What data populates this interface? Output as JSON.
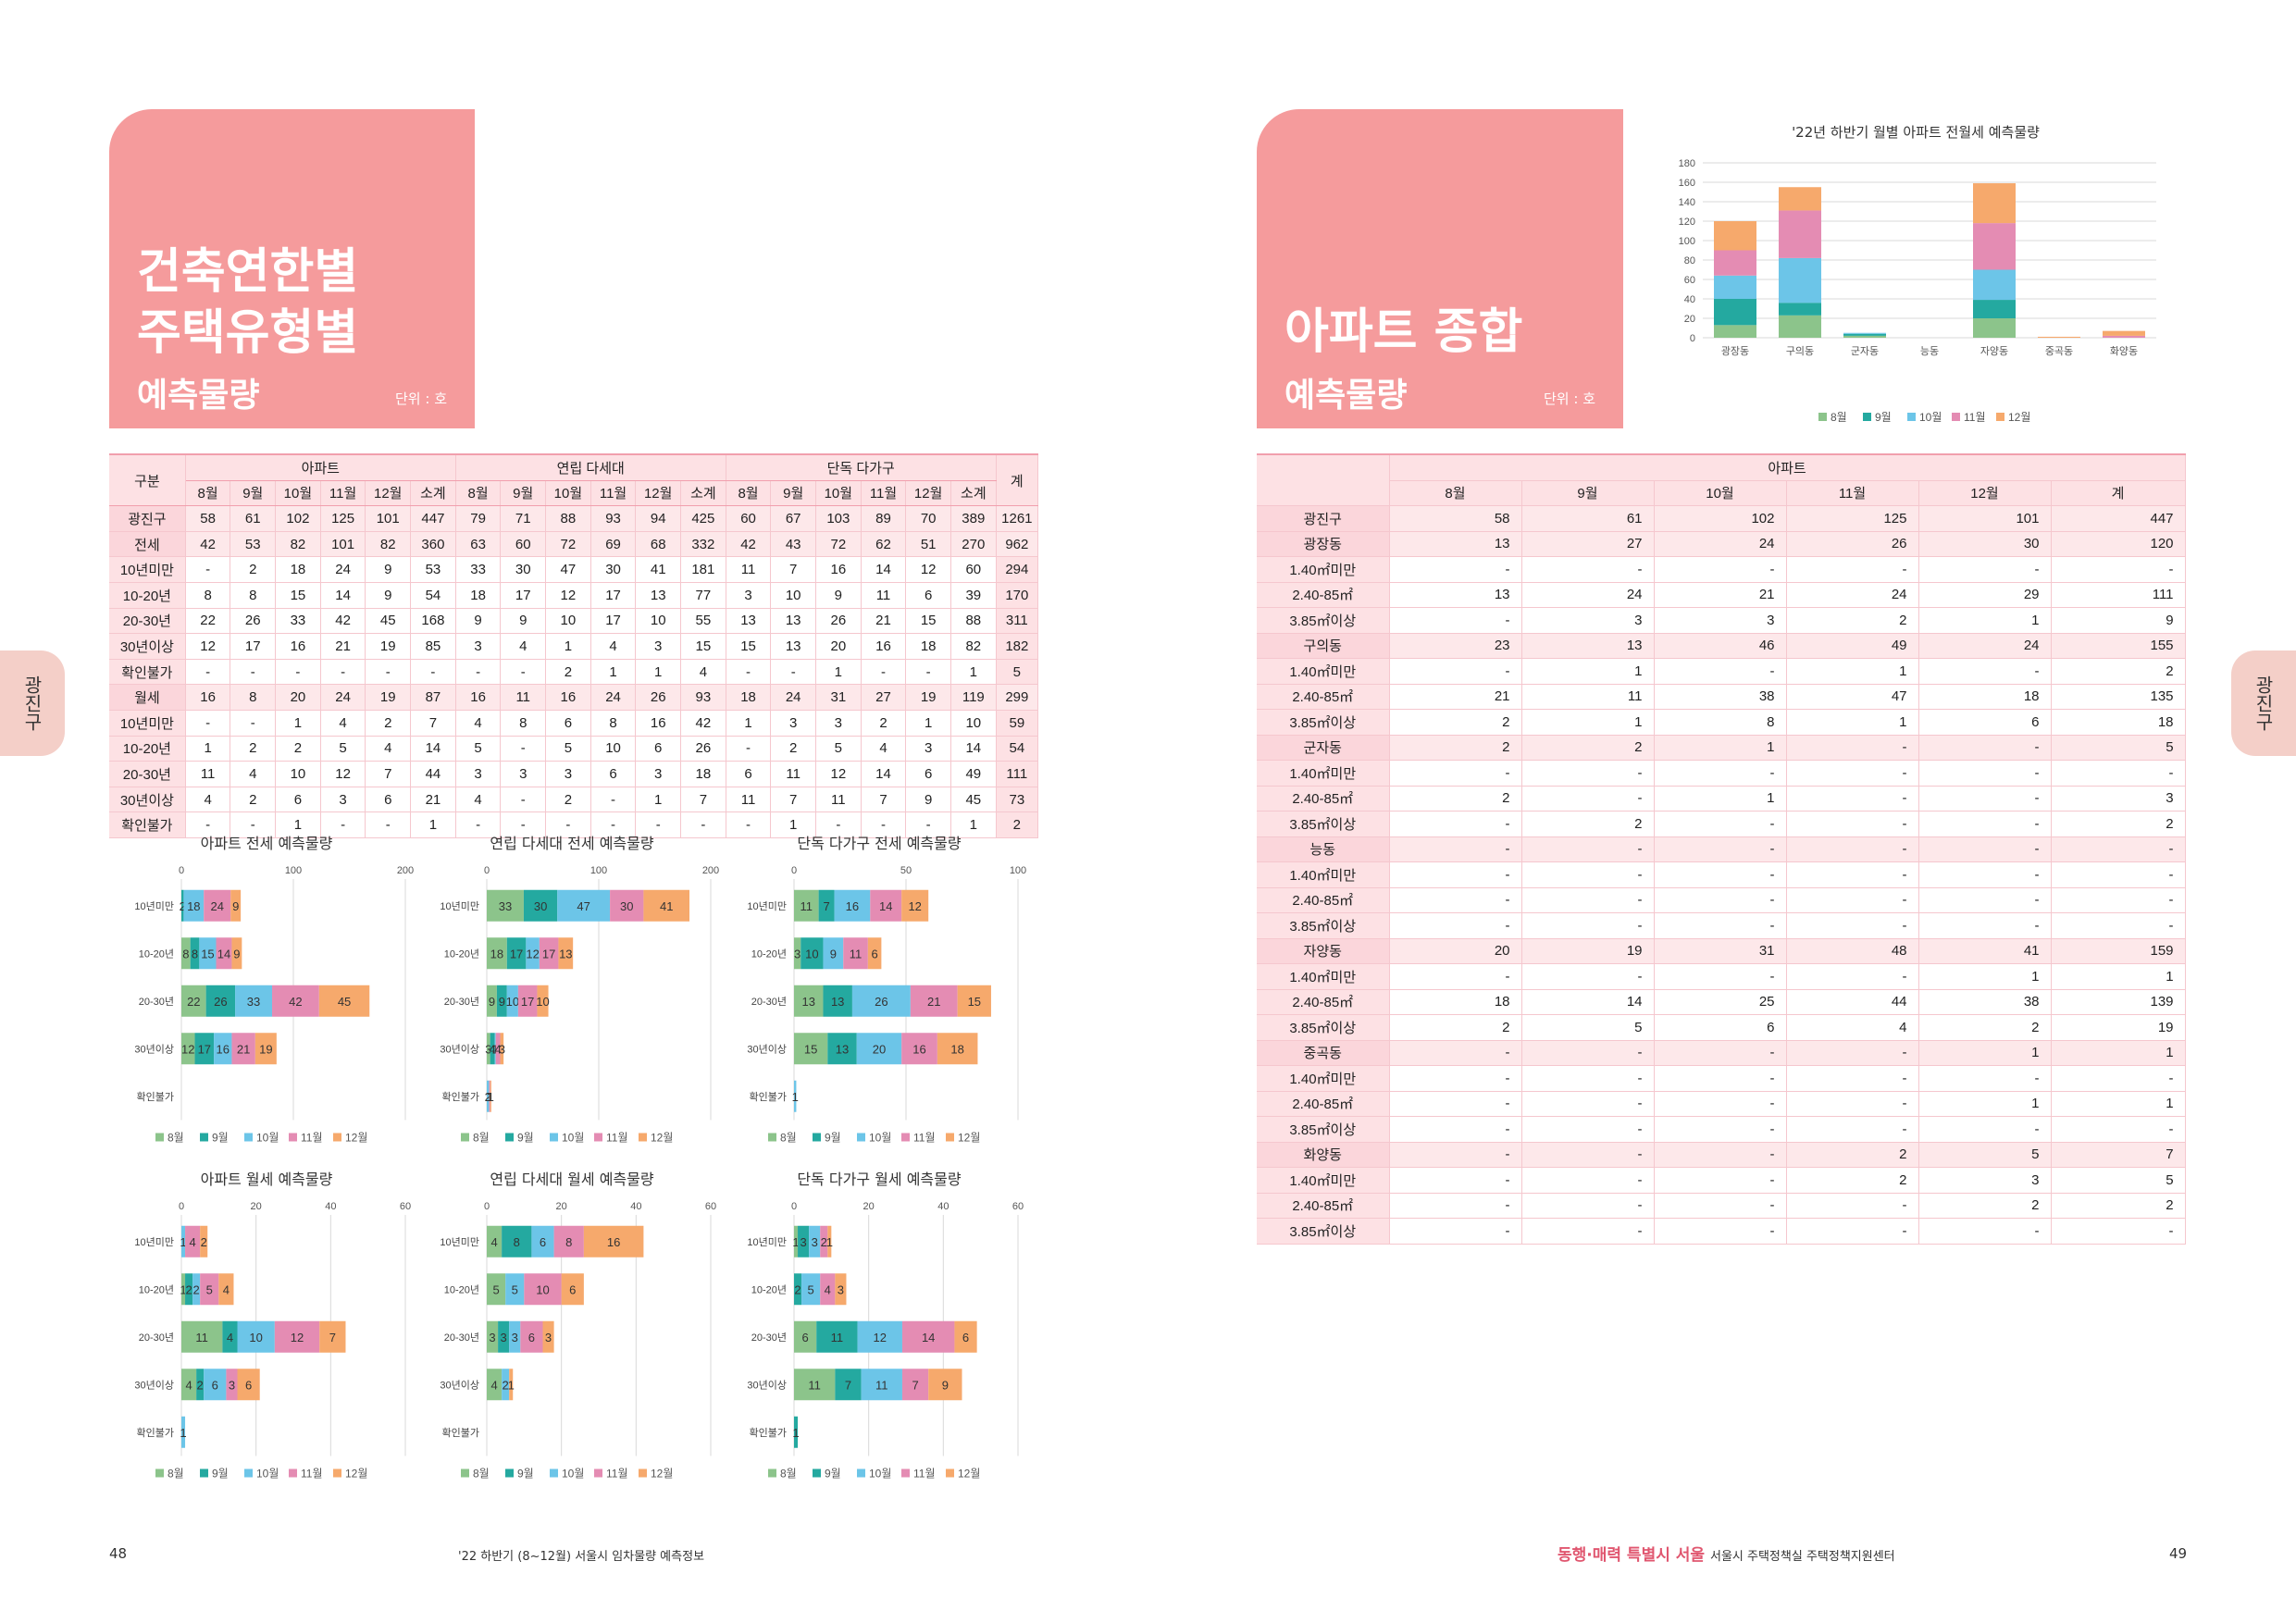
{
  "left": {
    "title_line1": "건축연한별",
    "title_line2": "주택유형별",
    "subtitle": "예측물량",
    "unit": "단위 : 호",
    "side_tab": "광진구",
    "page_number": "48",
    "footer": "'22 하반기 (8~12월) 서울시 임차물량 예측정보"
  },
  "right": {
    "title": "아파트 종합",
    "subtitle": "예측물량",
    "unit": "단위 : 호",
    "side_tab": "광진구",
    "page_number": "49",
    "footer_logo": "동행·매력 특별시 서울",
    "footer": "서울시 주택정책실 주택정책지원센터"
  },
  "left_table": {
    "corner": "구분",
    "groups": [
      "아파트",
      "연립 다세대",
      "단독 다가구"
    ],
    "total": "계",
    "months": [
      "8월",
      "9월",
      "10월",
      "11월",
      "12월",
      "소계"
    ],
    "rows": [
      {
        "label": "광진구",
        "sum": true,
        "vals": [
          "58",
          "61",
          "102",
          "125",
          "101",
          "447",
          "79",
          "71",
          "88",
          "93",
          "94",
          "425",
          "60",
          "67",
          "103",
          "89",
          "70",
          "389",
          "1261"
        ]
      },
      {
        "label": "전세",
        "sum": true,
        "vals": [
          "42",
          "53",
          "82",
          "101",
          "82",
          "360",
          "63",
          "60",
          "72",
          "69",
          "68",
          "332",
          "42",
          "43",
          "72",
          "62",
          "51",
          "270",
          "962"
        ]
      },
      {
        "label": "10년미만",
        "vals": [
          "-",
          "2",
          "18",
          "24",
          "9",
          "53",
          "33",
          "30",
          "47",
          "30",
          "41",
          "181",
          "11",
          "7",
          "16",
          "14",
          "12",
          "60",
          "294"
        ]
      },
      {
        "label": "10-20년",
        "vals": [
          "8",
          "8",
          "15",
          "14",
          "9",
          "54",
          "18",
          "17",
          "12",
          "17",
          "13",
          "77",
          "3",
          "10",
          "9",
          "11",
          "6",
          "39",
          "170"
        ]
      },
      {
        "label": "20-30년",
        "vals": [
          "22",
          "26",
          "33",
          "42",
          "45",
          "168",
          "9",
          "9",
          "10",
          "17",
          "10",
          "55",
          "13",
          "13",
          "26",
          "21",
          "15",
          "88",
          "311"
        ]
      },
      {
        "label": "30년이상",
        "vals": [
          "12",
          "17",
          "16",
          "21",
          "19",
          "85",
          "3",
          "4",
          "1",
          "4",
          "3",
          "15",
          "15",
          "13",
          "20",
          "16",
          "18",
          "82",
          "182"
        ]
      },
      {
        "label": "확인불가",
        "vals": [
          "-",
          "-",
          "-",
          "-",
          "-",
          "-",
          "-",
          "-",
          "2",
          "1",
          "1",
          "4",
          "-",
          "-",
          "1",
          "-",
          "-",
          "1",
          "5"
        ]
      },
      {
        "label": "월세",
        "sum": true,
        "vals": [
          "16",
          "8",
          "20",
          "24",
          "19",
          "87",
          "16",
          "11",
          "16",
          "24",
          "26",
          "93",
          "18",
          "24",
          "31",
          "27",
          "19",
          "119",
          "299"
        ]
      },
      {
        "label": "10년미만",
        "vals": [
          "-",
          "-",
          "1",
          "4",
          "2",
          "7",
          "4",
          "8",
          "6",
          "8",
          "16",
          "42",
          "1",
          "3",
          "3",
          "2",
          "1",
          "10",
          "59"
        ]
      },
      {
        "label": "10-20년",
        "vals": [
          "1",
          "2",
          "2",
          "5",
          "4",
          "14",
          "5",
          "-",
          "5",
          "10",
          "6",
          "26",
          "-",
          "2",
          "5",
          "4",
          "3",
          "14",
          "54"
        ]
      },
      {
        "label": "20-30년",
        "vals": [
          "11",
          "4",
          "10",
          "12",
          "7",
          "44",
          "3",
          "3",
          "3",
          "6",
          "3",
          "18",
          "6",
          "11",
          "12",
          "14",
          "6",
          "49",
          "111"
        ]
      },
      {
        "label": "30년이상",
        "vals": [
          "4",
          "2",
          "6",
          "3",
          "6",
          "21",
          "4",
          "-",
          "2",
          "-",
          "1",
          "7",
          "11",
          "7",
          "11",
          "7",
          "9",
          "45",
          "73"
        ]
      },
      {
        "label": "확인불가",
        "vals": [
          "-",
          "-",
          "1",
          "-",
          "-",
          "1",
          "-",
          "-",
          "-",
          "-",
          "-",
          "-",
          "-",
          "1",
          "-",
          "-",
          "-",
          "1",
          "2"
        ]
      }
    ]
  },
  "right_table": {
    "group": "아파트",
    "months": [
      "8월",
      "9월",
      "10월",
      "11월",
      "12월",
      "계"
    ],
    "rows": [
      {
        "label": "광진구",
        "sum": true,
        "vals": [
          "58",
          "61",
          "102",
          "125",
          "101",
          "447"
        ]
      },
      {
        "label": "광장동",
        "sum": true,
        "vals": [
          "13",
          "27",
          "24",
          "26",
          "30",
          "120"
        ]
      },
      {
        "label": "1.40㎡미만",
        "vals": [
          "-",
          "-",
          "-",
          "-",
          "-",
          "-"
        ]
      },
      {
        "label": "2.40-85㎡",
        "vals": [
          "13",
          "24",
          "21",
          "24",
          "29",
          "111"
        ]
      },
      {
        "label": "3.85㎡이상",
        "vals": [
          "-",
          "3",
          "3",
          "2",
          "1",
          "9"
        ]
      },
      {
        "label": "구의동",
        "sum": true,
        "vals": [
          "23",
          "13",
          "46",
          "49",
          "24",
          "155"
        ]
      },
      {
        "label": "1.40㎡미만",
        "vals": [
          "-",
          "1",
          "-",
          "1",
          "-",
          "2"
        ]
      },
      {
        "label": "2.40-85㎡",
        "vals": [
          "21",
          "11",
          "38",
          "47",
          "18",
          "135"
        ]
      },
      {
        "label": "3.85㎡이상",
        "vals": [
          "2",
          "1",
          "8",
          "1",
          "6",
          "18"
        ]
      },
      {
        "label": "군자동",
        "sum": true,
        "vals": [
          "2",
          "2",
          "1",
          "-",
          "-",
          "5"
        ]
      },
      {
        "label": "1.40㎡미만",
        "vals": [
          "-",
          "-",
          "-",
          "-",
          "-",
          "-"
        ]
      },
      {
        "label": "2.40-85㎡",
        "vals": [
          "2",
          "-",
          "1",
          "-",
          "-",
          "3"
        ]
      },
      {
        "label": "3.85㎡이상",
        "vals": [
          "-",
          "2",
          "-",
          "-",
          "-",
          "2"
        ]
      },
      {
        "label": "능동",
        "sum": true,
        "vals": [
          "-",
          "-",
          "-",
          "-",
          "-",
          "-"
        ]
      },
      {
        "label": "1.40㎡미만",
        "vals": [
          "-",
          "-",
          "-",
          "-",
          "-",
          "-"
        ]
      },
      {
        "label": "2.40-85㎡",
        "vals": [
          "-",
          "-",
          "-",
          "-",
          "-",
          "-"
        ]
      },
      {
        "label": "3.85㎡이상",
        "vals": [
          "-",
          "-",
          "-",
          "-",
          "-",
          "-"
        ]
      },
      {
        "label": "자양동",
        "sum": true,
        "vals": [
          "20",
          "19",
          "31",
          "48",
          "41",
          "159"
        ]
      },
      {
        "label": "1.40㎡미만",
        "vals": [
          "-",
          "-",
          "-",
          "-",
          "1",
          "1"
        ]
      },
      {
        "label": "2.40-85㎡",
        "vals": [
          "18",
          "14",
          "25",
          "44",
          "38",
          "139"
        ]
      },
      {
        "label": "3.85㎡이상",
        "vals": [
          "2",
          "5",
          "6",
          "4",
          "2",
          "19"
        ]
      },
      {
        "label": "중곡동",
        "sum": true,
        "vals": [
          "-",
          "-",
          "-",
          "-",
          "1",
          "1"
        ]
      },
      {
        "label": "1.40㎡미만",
        "vals": [
          "-",
          "-",
          "-",
          "-",
          "-",
          "-"
        ]
      },
      {
        "label": "2.40-85㎡",
        "vals": [
          "-",
          "-",
          "-",
          "-",
          "1",
          "1"
        ]
      },
      {
        "label": "3.85㎡이상",
        "vals": [
          "-",
          "-",
          "-",
          "-",
          "-",
          "-"
        ]
      },
      {
        "label": "화양동",
        "sum": true,
        "vals": [
          "-",
          "-",
          "-",
          "2",
          "5",
          "7"
        ]
      },
      {
        "label": "1.40㎡미만",
        "vals": [
          "-",
          "-",
          "-",
          "2",
          "3",
          "5"
        ]
      },
      {
        "label": "2.40-85㎡",
        "vals": [
          "-",
          "-",
          "-",
          "-",
          "2",
          "2"
        ]
      },
      {
        "label": "3.85㎡이상",
        "vals": [
          "-",
          "-",
          "-",
          "-",
          "-",
          "-"
        ]
      }
    ]
  },
  "series_colors": [
    "#8cc48b",
    "#24a9a0",
    "#6cc5e8",
    "#e48cb3",
    "#f6a96c"
  ],
  "legend": [
    "8월",
    "9월",
    "10월",
    "11월",
    "12월"
  ],
  "chart_data": [
    {
      "id": "top-right",
      "type": "bar",
      "stacked": true,
      "title": "'22년 하반기 월별 아파트 전월세 예측물량",
      "categories": [
        "광장동",
        "구의동",
        "군자동",
        "능동",
        "자양동",
        "중곡동",
        "화양동"
      ],
      "ylim": [
        0,
        180
      ],
      "yticks": [
        0,
        20,
        40,
        60,
        80,
        100,
        120,
        140,
        160,
        180
      ],
      "series": [
        {
          "name": "8월",
          "values": [
            13,
            23,
            2,
            0,
            20,
            0,
            0
          ]
        },
        {
          "name": "9월",
          "values": [
            27,
            13,
            2,
            0,
            19,
            0,
            0
          ]
        },
        {
          "name": "10월",
          "values": [
            24,
            46,
            1,
            0,
            31,
            0,
            0
          ]
        },
        {
          "name": "11월",
          "values": [
            26,
            49,
            0,
            0,
            48,
            0,
            2
          ]
        },
        {
          "name": "12월",
          "values": [
            30,
            24,
            0,
            0,
            41,
            1,
            5
          ]
        }
      ]
    },
    {
      "id": "apt-jeonse",
      "type": "bar",
      "orientation": "horizontal",
      "stacked": true,
      "title": "아파트 전세 예측물량",
      "xlim": [
        0,
        200
      ],
      "xticks": [
        0,
        100,
        200
      ],
      "categories": [
        "10년미만",
        "10-20년",
        "20-30년",
        "30년이상",
        "확인불가"
      ],
      "series": [
        {
          "name": "8월",
          "values": [
            0,
            8,
            22,
            12,
            0
          ]
        },
        {
          "name": "9월",
          "values": [
            2,
            8,
            26,
            17,
            0
          ]
        },
        {
          "name": "10월",
          "values": [
            18,
            15,
            33,
            16,
            0
          ]
        },
        {
          "name": "11월",
          "values": [
            24,
            14,
            42,
            21,
            0
          ]
        },
        {
          "name": "12월",
          "values": [
            9,
            9,
            45,
            19,
            0
          ]
        }
      ]
    },
    {
      "id": "yeonrip-jeonse",
      "type": "bar",
      "orientation": "horizontal",
      "stacked": true,
      "title": "연립 다세대 전세 예측물량",
      "xlim": [
        0,
        200
      ],
      "xticks": [
        0,
        100,
        200
      ],
      "categories": [
        "10년미만",
        "10-20년",
        "20-30년",
        "30년이상",
        "확인불가"
      ],
      "series": [
        {
          "name": "8월",
          "values": [
            33,
            18,
            9,
            3,
            0
          ]
        },
        {
          "name": "9월",
          "values": [
            30,
            17,
            9,
            4,
            0
          ]
        },
        {
          "name": "10월",
          "values": [
            47,
            12,
            10,
            1,
            2
          ]
        },
        {
          "name": "11월",
          "values": [
            30,
            17,
            17,
            4,
            1
          ]
        },
        {
          "name": "12월",
          "values": [
            41,
            13,
            10,
            3,
            1
          ]
        }
      ]
    },
    {
      "id": "dandok-jeonse",
      "type": "bar",
      "orientation": "horizontal",
      "stacked": true,
      "title": "단독 다가구 전세 예측물량",
      "xlim": [
        0,
        100
      ],
      "xticks": [
        0,
        50,
        100
      ],
      "categories": [
        "10년미만",
        "10-20년",
        "20-30년",
        "30년이상",
        "확인불가"
      ],
      "series": [
        {
          "name": "8월",
          "values": [
            11,
            3,
            13,
            15,
            0
          ]
        },
        {
          "name": "9월",
          "values": [
            7,
            10,
            13,
            13,
            0
          ]
        },
        {
          "name": "10월",
          "values": [
            16,
            9,
            26,
            20,
            1
          ]
        },
        {
          "name": "11월",
          "values": [
            14,
            11,
            21,
            16,
            0
          ]
        },
        {
          "name": "12월",
          "values": [
            12,
            6,
            15,
            18,
            0
          ]
        }
      ]
    },
    {
      "id": "apt-wolse",
      "type": "bar",
      "orientation": "horizontal",
      "stacked": true,
      "title": "아파트 월세 예측물량",
      "xlim": [
        0,
        60
      ],
      "xticks": [
        0,
        20,
        40,
        60
      ],
      "categories": [
        "10년미만",
        "10-20년",
        "20-30년",
        "30년이상",
        "확인불가"
      ],
      "series": [
        {
          "name": "8월",
          "values": [
            0,
            1,
            11,
            4,
            0
          ]
        },
        {
          "name": "9월",
          "values": [
            0,
            2,
            4,
            2,
            0
          ]
        },
        {
          "name": "10월",
          "values": [
            1,
            2,
            10,
            6,
            1
          ]
        },
        {
          "name": "11월",
          "values": [
            4,
            5,
            12,
            3,
            0
          ]
        },
        {
          "name": "12월",
          "values": [
            2,
            4,
            7,
            6,
            0
          ]
        }
      ]
    },
    {
      "id": "yeonrip-wolse",
      "type": "bar",
      "orientation": "horizontal",
      "stacked": true,
      "title": "연립 다세대 월세 예측물량",
      "xlim": [
        0,
        60
      ],
      "xticks": [
        0,
        20,
        40,
        60
      ],
      "categories": [
        "10년미만",
        "10-20년",
        "20-30년",
        "30년이상",
        "확인불가"
      ],
      "series": [
        {
          "name": "8월",
          "values": [
            4,
            5,
            3,
            4,
            0
          ]
        },
        {
          "name": "9월",
          "values": [
            8,
            0,
            3,
            0,
            0
          ]
        },
        {
          "name": "10월",
          "values": [
            6,
            5,
            3,
            2,
            0
          ]
        },
        {
          "name": "11월",
          "values": [
            8,
            10,
            6,
            0,
            0
          ]
        },
        {
          "name": "12월",
          "values": [
            16,
            6,
            3,
            1,
            0
          ]
        }
      ]
    },
    {
      "id": "dandok-wolse",
      "type": "bar",
      "orientation": "horizontal",
      "stacked": true,
      "title": "단독 다가구 월세 예측물량",
      "xlim": [
        0,
        60
      ],
      "xticks": [
        0,
        20,
        40,
        60
      ],
      "categories": [
        "10년미만",
        "10-20년",
        "20-30년",
        "30년이상",
        "확인불가"
      ],
      "series": [
        {
          "name": "8월",
          "values": [
            1,
            0,
            6,
            11,
            0
          ]
        },
        {
          "name": "9월",
          "values": [
            3,
            2,
            11,
            7,
            1
          ]
        },
        {
          "name": "10월",
          "values": [
            3,
            5,
            12,
            11,
            0
          ]
        },
        {
          "name": "11월",
          "values": [
            2,
            4,
            14,
            7,
            0
          ]
        },
        {
          "name": "12월",
          "values": [
            1,
            3,
            6,
            9,
            0
          ]
        }
      ]
    }
  ]
}
